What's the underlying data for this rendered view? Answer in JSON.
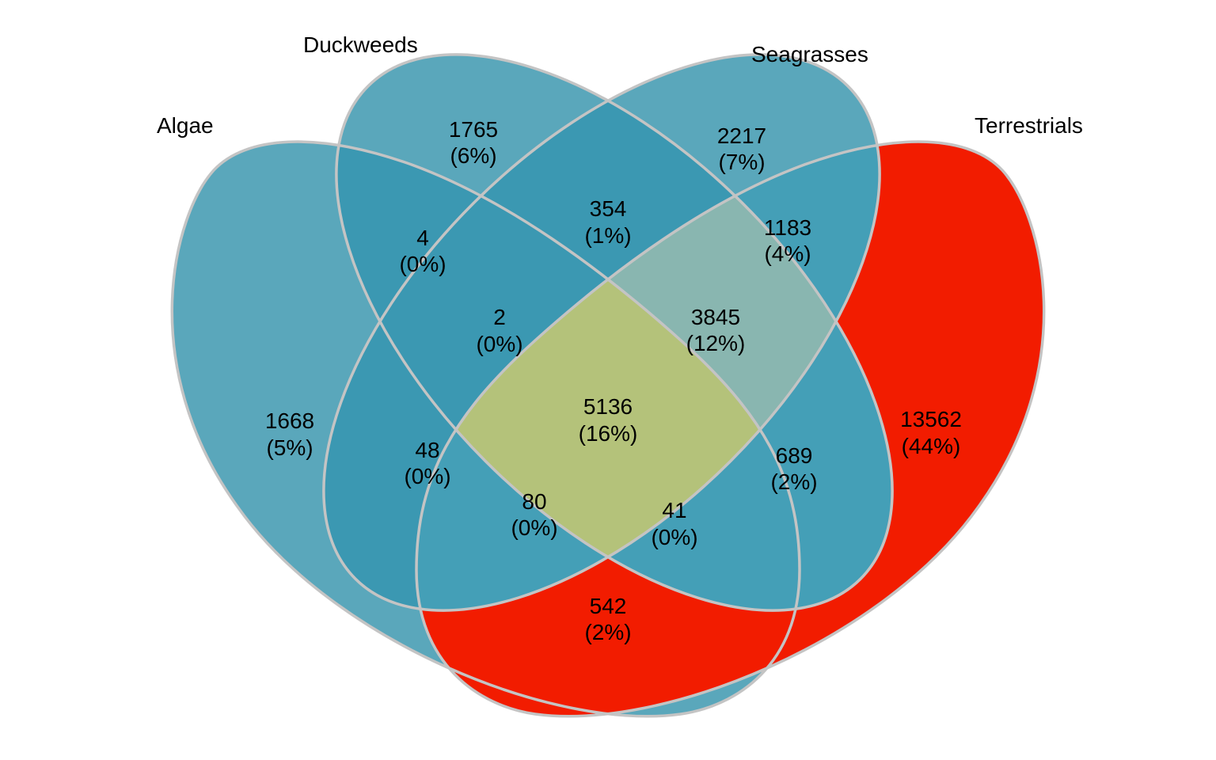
{
  "diagram": {
    "type": "venn-4",
    "sets": [
      {
        "key": "algae",
        "label": "Algae"
      },
      {
        "key": "duckweeds",
        "label": "Duckweeds"
      },
      {
        "key": "seagrasses",
        "label": "Seagrasses"
      },
      {
        "key": "terrestrials",
        "label": "Terrestrials"
      }
    ],
    "colors": {
      "background": "#ffffff",
      "set_fill": "#5aa7bb",
      "terrestrial_fill": "#f21c00",
      "pair_overlap": "#3b98b2",
      "triple_ds_t": "#89b6b0",
      "core": "#b4c27a",
      "outline": "#c4c4c4"
    },
    "regions": [
      {
        "sets": "A",
        "count": "1668",
        "pct": "(5%)"
      },
      {
        "sets": "D",
        "count": "1765",
        "pct": "(6%)"
      },
      {
        "sets": "S",
        "count": "2217",
        "pct": "(7%)"
      },
      {
        "sets": "T",
        "count": "13562",
        "pct": "(44%)"
      },
      {
        "sets": "A+D",
        "count": "4",
        "pct": "(0%)"
      },
      {
        "sets": "D+S",
        "count": "354",
        "pct": "(1%)"
      },
      {
        "sets": "S+T",
        "count": "1183",
        "pct": "(4%)"
      },
      {
        "sets": "A+D+S",
        "count": "2",
        "pct": "(0%)"
      },
      {
        "sets": "D+S+T",
        "count": "3845",
        "pct": "(12%)"
      },
      {
        "sets": "A+S",
        "count": "48",
        "pct": "(0%)"
      },
      {
        "sets": "D+T",
        "count": "689",
        "pct": "(2%)"
      },
      {
        "sets": "A+D+S+T",
        "count": "5136",
        "pct": "(16%)"
      },
      {
        "sets": "A+S+T",
        "count": "80",
        "pct": "(0%)"
      },
      {
        "sets": "A+D+T",
        "count": "41",
        "pct": "(0%)"
      },
      {
        "sets": "A+T",
        "count": "542",
        "pct": "(2%)"
      }
    ]
  }
}
